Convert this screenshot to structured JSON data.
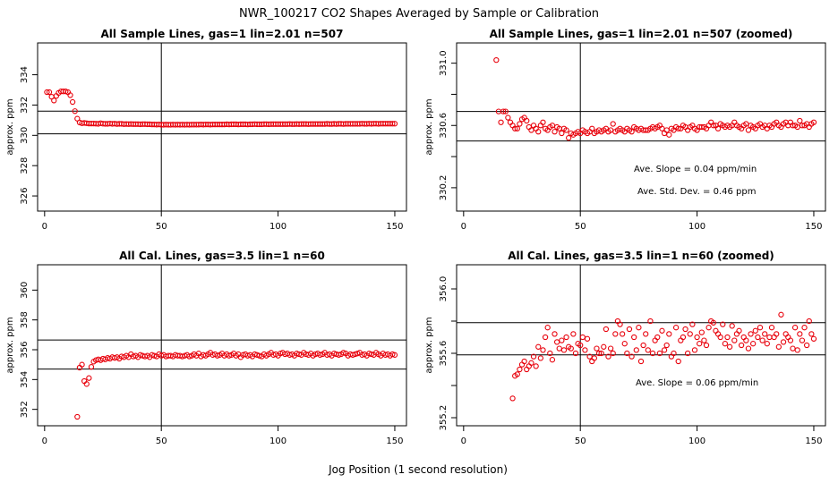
{
  "figure": {
    "title": "NWR_100217  CO2 Shapes Averaged by Sample or Calibration",
    "xlabel": "Jog Position (1 second resolution)"
  },
  "chart_data": [
    {
      "type": "scatter",
      "title": "All Sample Lines, gas=1 lin=2.01 n=507",
      "ylabel": "approx. ppm",
      "xlim": [
        -3,
        155
      ],
      "ylim": [
        325.0,
        336.1
      ],
      "xticks": [
        0,
        50,
        100,
        150
      ],
      "yticks": [
        326,
        328,
        330,
        332,
        334
      ],
      "vline": 50,
      "hlines": [
        331.6,
        330.1
      ],
      "annotations": [],
      "x": [
        1,
        2,
        3,
        4,
        5,
        6,
        7,
        8,
        9,
        10,
        11,
        12,
        13,
        14,
        15,
        16,
        17,
        18,
        19,
        20,
        21,
        22,
        23,
        24,
        25,
        26,
        27,
        28,
        29,
        30,
        31,
        32,
        33,
        34,
        35,
        36,
        37,
        38,
        39,
        40,
        41,
        42,
        43,
        44,
        45,
        46,
        47,
        48,
        49,
        50,
        51,
        52,
        53,
        54,
        55,
        56,
        57,
        58,
        59,
        60,
        61,
        62,
        63,
        64,
        65,
        66,
        67,
        68,
        69,
        70,
        71,
        72,
        73,
        74,
        75,
        76,
        77,
        78,
        79,
        80,
        81,
        82,
        83,
        84,
        85,
        86,
        87,
        88,
        89,
        90,
        91,
        92,
        93,
        94,
        95,
        96,
        97,
        98,
        99,
        100,
        101,
        102,
        103,
        104,
        105,
        106,
        107,
        108,
        109,
        110,
        111,
        112,
        113,
        114,
        115,
        116,
        117,
        118,
        119,
        120,
        121,
        122,
        123,
        124,
        125,
        126,
        127,
        128,
        129,
        130,
        131,
        132,
        133,
        134,
        135,
        136,
        137,
        138,
        139,
        140,
        141,
        142,
        143,
        144,
        145,
        146,
        147,
        148,
        149,
        150
      ],
      "y": [
        332.85,
        332.85,
        332.55,
        332.3,
        332.6,
        332.8,
        332.9,
        332.9,
        332.9,
        332.85,
        332.65,
        332.2,
        331.6,
        331.1,
        330.85,
        330.8,
        330.82,
        330.8,
        330.78,
        330.78,
        330.78,
        330.77,
        330.76,
        330.8,
        330.77,
        330.76,
        330.76,
        330.78,
        330.76,
        330.77,
        330.75,
        330.76,
        330.76,
        330.74,
        330.75,
        330.74,
        330.75,
        330.74,
        330.74,
        330.74,
        330.73,
        330.74,
        330.74,
        330.73,
        330.73,
        330.72,
        330.72,
        330.71,
        330.72,
        330.7,
        330.7,
        330.71,
        330.7,
        330.7,
        330.71,
        330.7,
        330.71,
        330.7,
        330.71,
        330.7,
        330.71,
        330.7,
        330.71,
        330.71,
        330.71,
        330.71,
        330.72,
        330.71,
        330.72,
        330.72,
        330.71,
        330.72,
        330.72,
        330.72,
        330.72,
        330.72,
        330.72,
        330.73,
        330.72,
        330.73,
        330.73,
        330.73,
        330.72,
        330.73,
        330.73,
        330.73,
        330.72,
        330.73,
        330.73,
        330.74,
        330.73,
        330.73,
        330.73,
        330.74,
        330.74,
        330.73,
        330.74,
        330.74,
        330.74,
        330.74,
        330.74,
        330.74,
        330.74,
        330.74,
        330.75,
        330.74,
        330.74,
        330.75,
        330.74,
        330.75,
        330.75,
        330.75,
        330.74,
        330.75,
        330.75,
        330.75,
        330.75,
        330.75,
        330.75,
        330.75,
        330.76,
        330.75,
        330.75,
        330.76,
        330.75,
        330.76,
        330.76,
        330.75,
        330.76,
        330.76,
        330.76,
        330.76,
        330.76,
        330.76,
        330.76,
        330.77,
        330.76,
        330.76,
        330.77,
        330.76,
        330.77,
        330.77,
        330.76,
        330.77,
        330.77,
        330.77,
        330.77,
        330.77,
        330.77,
        330.77
      ]
    },
    {
      "type": "scatter",
      "title": "All Sample Lines, gas=1 lin=2.01 n=507 (zoomed)",
      "ylabel": "approx. ppm",
      "xlim": [
        -3,
        155
      ],
      "ylim": [
        330.05,
        331.13
      ],
      "xticks": [
        0,
        50,
        100,
        150
      ],
      "yticks": [
        330.2,
        330.4,
        330.6,
        330.8,
        331.0
      ],
      "yticklabels": [
        "330.2",
        "",
        "330.6",
        "",
        "331.0"
      ],
      "vline": 50,
      "hlines": [
        330.69,
        330.5
      ],
      "annotations": [
        "Ave. Slope =  0.04  ppm/min",
        "Ave. Std. Dev. =  0.46  ppm"
      ],
      "x": [
        14,
        15,
        16,
        17,
        18,
        19,
        20,
        21,
        22,
        23,
        24,
        25,
        26,
        27,
        28,
        29,
        30,
        31,
        32,
        33,
        34,
        35,
        36,
        37,
        38,
        39,
        40,
        41,
        42,
        43,
        44,
        45,
        46,
        47,
        48,
        49,
        50,
        51,
        52,
        53,
        54,
        55,
        56,
        57,
        58,
        59,
        60,
        61,
        62,
        63,
        64,
        65,
        66,
        67,
        68,
        69,
        70,
        71,
        72,
        73,
        74,
        75,
        76,
        77,
        78,
        79,
        80,
        81,
        82,
        83,
        84,
        85,
        86,
        87,
        88,
        89,
        90,
        91,
        92,
        93,
        94,
        95,
        96,
        97,
        98,
        99,
        100,
        101,
        102,
        103,
        104,
        105,
        106,
        107,
        108,
        109,
        110,
        111,
        112,
        113,
        114,
        115,
        116,
        117,
        118,
        119,
        120,
        121,
        122,
        123,
        124,
        125,
        126,
        127,
        128,
        129,
        130,
        131,
        132,
        133,
        134,
        135,
        136,
        137,
        138,
        139,
        140,
        141,
        142,
        143,
        144,
        145,
        146,
        147,
        148,
        149,
        150
      ],
      "y": [
        331.02,
        330.69,
        330.62,
        330.69,
        330.69,
        330.65,
        330.62,
        330.6,
        330.58,
        330.58,
        330.61,
        330.64,
        330.65,
        330.63,
        330.59,
        330.57,
        330.6,
        330.58,
        330.56,
        330.6,
        330.62,
        330.58,
        330.57,
        330.59,
        330.6,
        330.56,
        330.59,
        330.58,
        330.55,
        330.58,
        330.57,
        330.52,
        330.55,
        330.54,
        330.55,
        330.56,
        330.55,
        330.57,
        330.56,
        330.55,
        330.56,
        330.58,
        330.55,
        330.56,
        330.57,
        330.56,
        330.57,
        330.58,
        330.56,
        330.57,
        330.61,
        330.56,
        330.57,
        330.58,
        330.57,
        330.56,
        330.58,
        330.57,
        330.56,
        330.59,
        330.58,
        330.57,
        330.58,
        330.57,
        330.57,
        330.57,
        330.58,
        330.59,
        330.58,
        330.59,
        330.6,
        330.58,
        330.55,
        330.57,
        330.54,
        330.58,
        330.57,
        330.59,
        330.58,
        330.58,
        330.6,
        330.59,
        330.57,
        330.59,
        330.6,
        330.58,
        330.57,
        330.59,
        330.59,
        330.59,
        330.58,
        330.6,
        330.62,
        330.6,
        330.6,
        330.58,
        330.61,
        330.6,
        330.59,
        330.6,
        330.59,
        330.6,
        330.62,
        330.6,
        330.59,
        330.58,
        330.6,
        330.61,
        330.57,
        330.6,
        330.59,
        330.58,
        330.6,
        330.61,
        330.59,
        330.6,
        330.58,
        330.6,
        330.59,
        330.61,
        330.62,
        330.6,
        330.59,
        330.61,
        330.62,
        330.6,
        330.62,
        330.6,
        330.6,
        330.59,
        330.63,
        330.6,
        330.6,
        330.61,
        330.59,
        330.61,
        330.62
      ]
    },
    {
      "type": "scatter",
      "title": "All Cal. Lines, gas=3.5 lin=1 n=60",
      "ylabel": "approx. ppm",
      "xlim": [
        -3,
        155
      ],
      "ylim": [
        350.9,
        361.7
      ],
      "xticks": [
        0,
        50,
        100,
        150
      ],
      "yticks": [
        352,
        354,
        356,
        358,
        360
      ],
      "vline": 50,
      "hlines": [
        356.65,
        354.7
      ],
      "annotations": [],
      "x": [
        14,
        15,
        16,
        17,
        18,
        19,
        20,
        21,
        22,
        23,
        24,
        25,
        26,
        27,
        28,
        29,
        30,
        31,
        32,
        33,
        34,
        35,
        36,
        37,
        38,
        39,
        40,
        41,
        42,
        43,
        44,
        45,
        46,
        47,
        48,
        49,
        50,
        51,
        52,
        53,
        54,
        55,
        56,
        57,
        58,
        59,
        60,
        61,
        62,
        63,
        64,
        65,
        66,
        67,
        68,
        69,
        70,
        71,
        72,
        73,
        74,
        75,
        76,
        77,
        78,
        79,
        80,
        81,
        82,
        83,
        84,
        85,
        86,
        87,
        88,
        89,
        90,
        91,
        92,
        93,
        94,
        95,
        96,
        97,
        98,
        99,
        100,
        101,
        102,
        103,
        104,
        105,
        106,
        107,
        108,
        109,
        110,
        111,
        112,
        113,
        114,
        115,
        116,
        117,
        118,
        119,
        120,
        121,
        122,
        123,
        124,
        125,
        126,
        127,
        128,
        129,
        130,
        131,
        132,
        133,
        134,
        135,
        136,
        137,
        138,
        139,
        140,
        141,
        142,
        143,
        144,
        145,
        146,
        147,
        148,
        149,
        150
      ],
      "y": [
        351.5,
        354.8,
        355.0,
        353.9,
        353.7,
        354.1,
        354.85,
        355.2,
        355.3,
        355.35,
        355.3,
        355.4,
        355.35,
        355.45,
        355.4,
        355.5,
        355.45,
        355.5,
        355.4,
        355.55,
        355.5,
        355.6,
        355.5,
        355.7,
        355.55,
        355.6,
        355.5,
        355.65,
        355.6,
        355.55,
        355.6,
        355.5,
        355.65,
        355.6,
        355.55,
        355.7,
        355.6,
        355.65,
        355.55,
        355.6,
        355.6,
        355.55,
        355.65,
        355.6,
        355.6,
        355.55,
        355.6,
        355.65,
        355.55,
        355.6,
        355.7,
        355.6,
        355.75,
        355.55,
        355.65,
        355.6,
        355.7,
        355.8,
        355.65,
        355.7,
        355.6,
        355.65,
        355.75,
        355.6,
        355.7,
        355.6,
        355.65,
        355.75,
        355.6,
        355.7,
        355.5,
        355.65,
        355.7,
        355.6,
        355.65,
        355.55,
        355.7,
        355.65,
        355.6,
        355.55,
        355.7,
        355.6,
        355.7,
        355.8,
        355.65,
        355.7,
        355.6,
        355.75,
        355.8,
        355.7,
        355.75,
        355.65,
        355.7,
        355.6,
        355.75,
        355.7,
        355.65,
        355.8,
        355.7,
        355.65,
        355.75,
        355.6,
        355.7,
        355.75,
        355.65,
        355.7,
        355.8,
        355.65,
        355.7,
        355.6,
        355.75,
        355.7,
        355.65,
        355.7,
        355.8,
        355.75,
        355.6,
        355.7,
        355.65,
        355.7,
        355.75,
        355.8,
        355.65,
        355.7,
        355.6,
        355.75,
        355.7,
        355.65,
        355.8,
        355.7,
        355.6,
        355.75,
        355.65,
        355.7,
        355.6,
        355.7,
        355.65
      ]
    },
    {
      "type": "scatter",
      "title": "All Cal. Lines, gas=3.5 lin=1 n=60 (zoomed)",
      "ylabel": "approx. ppm",
      "xlim": [
        -3,
        155
      ],
      "ylim": [
        355.15,
        356.15
      ],
      "xticks": [
        0,
        50,
        100,
        150
      ],
      "yticks": [
        355.2,
        355.4,
        355.6,
        355.8,
        356.0
      ],
      "yticklabels": [
        "355.2",
        "",
        "355.6",
        "",
        "356.0"
      ],
      "vline": 50,
      "hlines": [
        355.79,
        355.59
      ],
      "annotations": [
        "Ave. Slope =  0.06  ppm/min"
      ],
      "x": [
        21,
        22,
        23,
        24,
        25,
        26,
        27,
        28,
        29,
        30,
        31,
        32,
        33,
        34,
        35,
        36,
        37,
        38,
        39,
        40,
        41,
        42,
        43,
        44,
        45,
        46,
        47,
        48,
        49,
        50,
        51,
        52,
        53,
        54,
        55,
        56,
        57,
        58,
        59,
        60,
        61,
        62,
        63,
        64,
        65,
        66,
        67,
        68,
        69,
        70,
        71,
        72,
        73,
        74,
        75,
        76,
        77,
        78,
        79,
        80,
        81,
        82,
        83,
        84,
        85,
        86,
        87,
        88,
        89,
        90,
        91,
        92,
        93,
        94,
        95,
        96,
        97,
        98,
        99,
        100,
        101,
        102,
        103,
        104,
        105,
        106,
        107,
        108,
        109,
        110,
        111,
        112,
        113,
        114,
        115,
        116,
        117,
        118,
        119,
        120,
        121,
        122,
        123,
        124,
        125,
        126,
        127,
        128,
        129,
        130,
        131,
        132,
        133,
        134,
        135,
        136,
        137,
        138,
        139,
        140,
        141,
        142,
        143,
        144,
        145,
        146,
        147,
        148,
        149,
        150
      ],
      "y": [
        355.32,
        355.46,
        355.47,
        355.5,
        355.53,
        355.55,
        355.5,
        355.52,
        355.54,
        355.58,
        355.52,
        355.64,
        355.57,
        355.62,
        355.7,
        355.76,
        355.6,
        355.56,
        355.72,
        355.67,
        355.63,
        355.68,
        355.62,
        355.7,
        355.64,
        355.63,
        355.72,
        355.6,
        355.66,
        355.65,
        355.7,
        355.62,
        355.69,
        355.58,
        355.55,
        355.57,
        355.63,
        355.6,
        355.6,
        355.64,
        355.75,
        355.58,
        355.63,
        355.6,
        355.72,
        355.8,
        355.78,
        355.72,
        355.66,
        355.6,
        355.75,
        355.58,
        355.7,
        355.62,
        355.76,
        355.55,
        355.65,
        355.72,
        355.62,
        355.8,
        355.6,
        355.68,
        355.7,
        355.6,
        355.74,
        355.62,
        355.65,
        355.72,
        355.58,
        355.6,
        355.76,
        355.55,
        355.68,
        355.7,
        355.75,
        355.6,
        355.72,
        355.78,
        355.62,
        355.7,
        355.66,
        355.73,
        355.68,
        355.65,
        355.76,
        355.8,
        355.79,
        355.74,
        355.72,
        355.7,
        355.78,
        355.66,
        355.7,
        355.64,
        355.77,
        355.68,
        355.72,
        355.74,
        355.65,
        355.7,
        355.68,
        355.63,
        355.72,
        355.66,
        355.74,
        355.7,
        355.76,
        355.68,
        355.72,
        355.66,
        355.7,
        355.76,
        355.7,
        355.72,
        355.64,
        355.84,
        355.67,
        355.72,
        355.7,
        355.68,
        355.63,
        355.76,
        355.62,
        355.72,
        355.68,
        355.76,
        355.65,
        355.8,
        355.72,
        355.69
      ]
    }
  ]
}
